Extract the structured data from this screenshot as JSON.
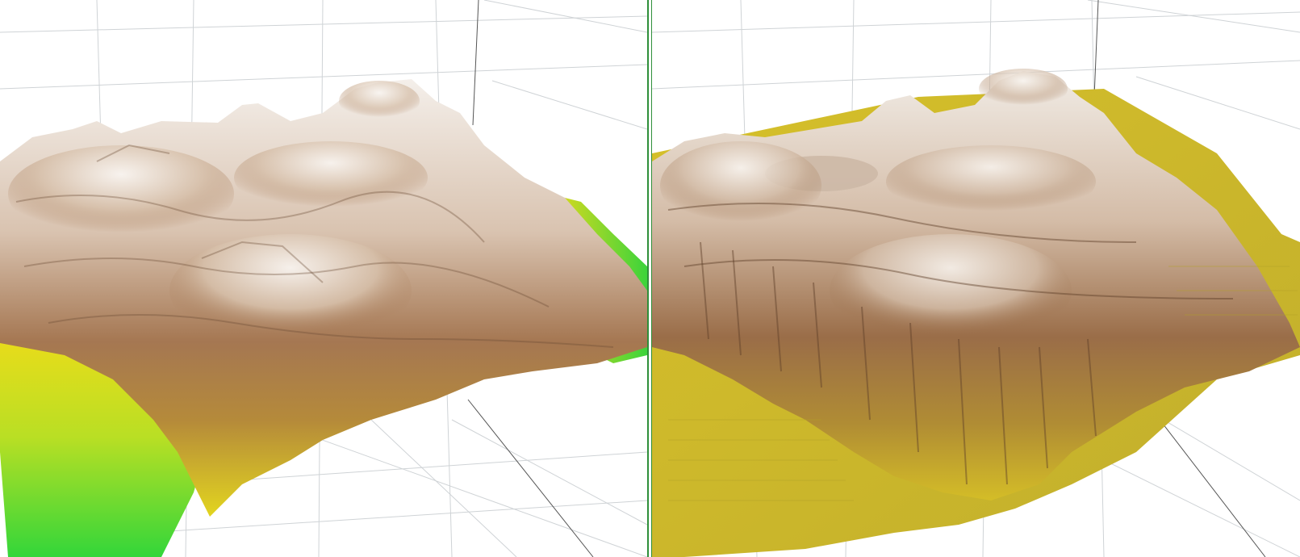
{
  "view": {
    "layout": "side-by-side",
    "divider_color": "#2f8f3a",
    "background": "#ffffff",
    "grid_color": "#cfd3d6",
    "axis_color": "#555555"
  },
  "panels": [
    {
      "id": "left",
      "surface": "terrain-heightmap-smooth",
      "color_stops": {
        "low": "#33d63a",
        "mid": "#e9dc1a",
        "high_dark": "#8a5a34",
        "peak": "#f4efea"
      }
    },
    {
      "id": "right",
      "surface": "terrain-heightmap-eroded",
      "color_stops": {
        "low": "#c5b22a",
        "mid": "#d8c126",
        "high_dark": "#7d5330",
        "peak": "#f1ece6"
      }
    }
  ]
}
